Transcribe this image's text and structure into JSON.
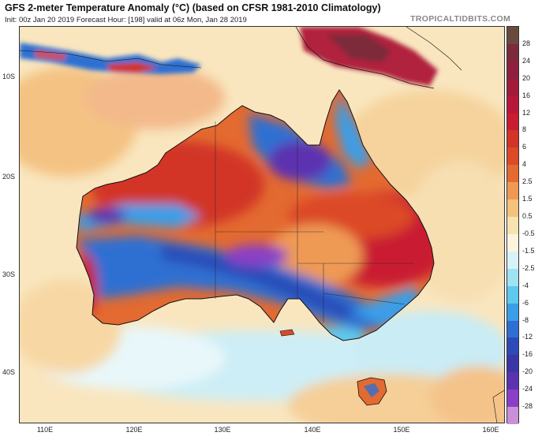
{
  "header": {
    "title": "GFS 2-meter Temperature Anomaly (°C) (based on CFSR 1981-2010 Climatology)",
    "subtitle": "Init: 00z Jan 20 2019   Forecast Hour: [198]   valid at 06z Mon, Jan 28 2019",
    "brand": "TROPICALTIDBITS.COM"
  },
  "map": {
    "lat_labels": [
      "10S",
      "20S",
      "30S",
      "40S"
    ],
    "lon_labels": [
      "110E",
      "120E",
      "130E",
      "140E",
      "150E",
      "160E"
    ],
    "regions": [
      {
        "name": "northwest-australia-warm",
        "anomaly": "warm"
      },
      {
        "name": "queensland-warm",
        "anomaly": "warm"
      },
      {
        "name": "southern-australia-cold",
        "anomaly": "cold"
      },
      {
        "name": "northern-territory-cold",
        "anomaly": "cold"
      },
      {
        "name": "papua-new-guinea-warm",
        "anomaly": "warm"
      },
      {
        "name": "tasmania-warm",
        "anomaly": "warm"
      }
    ]
  },
  "colorbar": {
    "labels": [
      "28",
      "24",
      "20",
      "16",
      "12",
      "8",
      "6",
      "4",
      "2.5",
      "1.5",
      "0.5",
      "-0.5",
      "-1.5",
      "-2.5",
      "-4",
      "-6",
      "-8",
      "-12",
      "-16",
      "-20",
      "-24",
      "-28"
    ],
    "colors": [
      "#6b4a3e",
      "#7d2a3a",
      "#8e1f3f",
      "#a31b3a",
      "#b8173a",
      "#c91c30",
      "#d23428",
      "#dc4a28",
      "#e36a30",
      "#ee9a55",
      "#f5c27c",
      "#f8e2b0",
      "#fdf4df",
      "#d6f3f8",
      "#9fe3f2",
      "#5ec9ef",
      "#3a9ee8",
      "#2f6fd2",
      "#2c4bb8",
      "#3a36a6",
      "#5b33b1",
      "#8a3fc6",
      "#c98fd8"
    ]
  }
}
